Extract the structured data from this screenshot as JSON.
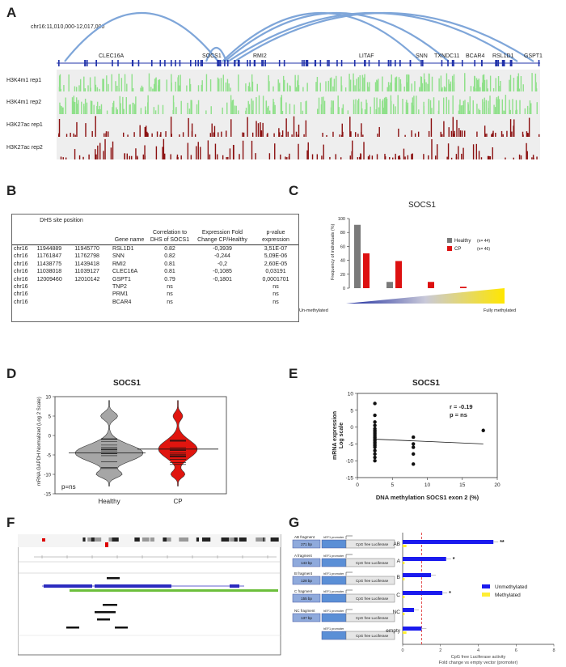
{
  "panels": {
    "a": "A",
    "b": "B",
    "c": "C",
    "d": "D",
    "e": "E",
    "f": "F",
    "g": "G"
  },
  "panelA": {
    "region": "chr16:11,010,000-12,017,000",
    "genes": [
      "CLEC16A",
      "SOCS1",
      "RMI2",
      "LITAF",
      "SNN",
      "TXNDC11",
      "BCAR4",
      "RSL1D1",
      "GSPT1"
    ],
    "tracks": [
      "H3K4m1 rep1",
      "H3K4m1 rep2",
      "H3K27ac rep1",
      "H3K27ac rep2"
    ],
    "colors": {
      "h3k4": "#8fe08a",
      "h3k27": "#8b1010",
      "loop": "#7fa6d9",
      "gene": "#2233aa"
    }
  },
  "panelB": {
    "headers": {
      "dhs": "DHS site position",
      "gene": "Gene name",
      "corr": "Correlation to DHS of SOCS1",
      "fold": "Expression Fold Change CP/Healthy",
      "pval": "p-value expression"
    },
    "rows": [
      {
        "chr": "chr16",
        "start": "11944889",
        "end": "11945770",
        "gene": "RSL1D1",
        "corr": "0.82",
        "fold": "-0,3939",
        "p": "3,51E-07"
      },
      {
        "chr": "chr16",
        "start": "11761847",
        "end": "11762798",
        "gene": "SNN",
        "corr": "0.82",
        "fold": "-0,244",
        "p": "5,09E-06"
      },
      {
        "chr": "chr16",
        "start": "11438775",
        "end": "11439418",
        "gene": "RMI2",
        "corr": "0.81",
        "fold": "-0,2",
        "p": "2,60E-05"
      },
      {
        "chr": "chr16",
        "start": "11038018",
        "end": "11039127",
        "gene": "CLEC16A",
        "corr": "0.81",
        "fold": "-0,1085",
        "p": "0,03191"
      },
      {
        "chr": "chr16",
        "start": "12009460",
        "end": "12010142",
        "gene": "GSPT1",
        "corr": "0.79",
        "fold": "-0,1801",
        "p": "0,0001701"
      },
      {
        "chr": "chr16",
        "start": "",
        "end": "",
        "gene": "TNP2",
        "corr": "ns",
        "fold": "",
        "p": "ns"
      },
      {
        "chr": "chr16",
        "start": "",
        "end": "",
        "gene": "PRM1",
        "corr": "ns",
        "fold": "",
        "p": "ns"
      },
      {
        "chr": "chr16",
        "start": "",
        "end": "",
        "gene": "BCAR4",
        "corr": "ns",
        "fold": "",
        "p": "ns"
      }
    ]
  },
  "chart_data": [
    {
      "id": "C",
      "type": "bar",
      "title": "SOCS1",
      "ylabel": "Frequency of individuals (%)",
      "ylim": [
        0,
        100
      ],
      "yticks": [
        "0",
        "20",
        "40",
        "60",
        "80",
        "100"
      ],
      "series": [
        {
          "name": "Healthy",
          "n": "(n= 44)",
          "color": "#7a7a7a",
          "values": [
            91,
            9,
            0,
            0,
            0
          ]
        },
        {
          "name": "CP",
          "n": "(n= 46)",
          "color": "#dd1111",
          "values": [
            50,
            39,
            9,
            2,
            0
          ]
        }
      ],
      "xlabel_left": "Un-methylated",
      "xlabel_right": "Fully methylated"
    },
    {
      "id": "D",
      "type": "violin",
      "title": "SOCS1",
      "ylabel": "mRNA GAPDH Normalized (Log 2 Scale)",
      "ylim": [
        -15,
        10
      ],
      "yticks": [
        "10",
        "5",
        "0",
        "-5",
        "-10",
        "-15"
      ],
      "categories": [
        "Healthy",
        "CP"
      ],
      "medians": [
        -4.5,
        -3.5
      ],
      "annotation": "p=ns"
    },
    {
      "id": "E",
      "type": "scatter",
      "title": "SOCS1",
      "xlabel": "DNA methylation SOCS1 exon 2 (%)",
      "ylabel": "mRNA expression Log scale",
      "xlim": [
        0,
        20
      ],
      "ylim": [
        -15,
        10
      ],
      "xticks": [
        "0",
        "5",
        "10",
        "15",
        "20"
      ],
      "yticks": [
        "10",
        "5",
        "0",
        "-5",
        "-10",
        "-15"
      ],
      "stat_r": "r = -0.19",
      "stat_p": "p = ns",
      "points": [
        [
          2.5,
          7
        ],
        [
          2.5,
          3.5
        ],
        [
          2.5,
          1.5
        ],
        [
          2.5,
          0.5
        ],
        [
          2.5,
          -0.5
        ],
        [
          2.5,
          -1
        ],
        [
          2.5,
          -1.5
        ],
        [
          2.5,
          -2
        ],
        [
          2.5,
          -2.5
        ],
        [
          2.5,
          -3
        ],
        [
          2.5,
          -3.5
        ],
        [
          2.5,
          -4
        ],
        [
          2.5,
          -4.5
        ],
        [
          2.5,
          -5
        ],
        [
          2.5,
          -5.5
        ],
        [
          2.5,
          -6
        ],
        [
          2.5,
          -7
        ],
        [
          2.5,
          -8
        ],
        [
          2.5,
          -9
        ],
        [
          2.5,
          -10
        ],
        [
          8,
          -3
        ],
        [
          8,
          -5
        ],
        [
          8,
          -6
        ],
        [
          8,
          -8
        ],
        [
          8,
          -11
        ],
        [
          18,
          -1
        ]
      ],
      "fit": [
        [
          2.5,
          -3.6
        ],
        [
          18,
          -5.0
        ]
      ]
    },
    {
      "id": "G",
      "type": "bar",
      "orientation": "horizontal",
      "xlabel_1": "CpG free Luciferase activity",
      "xlabel_2": "Fold change vs empty vector (promoter)",
      "xlim": [
        0,
        8
      ],
      "xticks": [
        "0",
        "2",
        "4",
        "6",
        "8"
      ],
      "categories": [
        "AB",
        "A",
        "B",
        "C",
        "NC",
        "empty"
      ],
      "series": [
        {
          "name": "Unmethylated",
          "color": "#1a1aee",
          "values": [
            4.8,
            2.3,
            1.5,
            2.1,
            0.6,
            1.0
          ]
        },
        {
          "name": "Methylated",
          "color": "#ffee33",
          "values": [
            0.2,
            0.1,
            0.1,
            0.1,
            0.1,
            0.2
          ]
        }
      ],
      "stars": [
        "**",
        "*",
        "",
        "*",
        "",
        ""
      ]
    }
  ],
  "panelG": {
    "fragments": [
      {
        "name": "AB fragment",
        "size": "271 bp"
      },
      {
        "name": "A fragment",
        "size": "143 bp"
      },
      {
        "name": "B fragment",
        "size": "128 bp"
      },
      {
        "name": "C fragment",
        "size": "155 bp"
      },
      {
        "name": "NC fragment",
        "size": "137 bp"
      }
    ],
    "promoter": "hEF1 promoter",
    "luciferase": "CpG free Luciferase"
  }
}
